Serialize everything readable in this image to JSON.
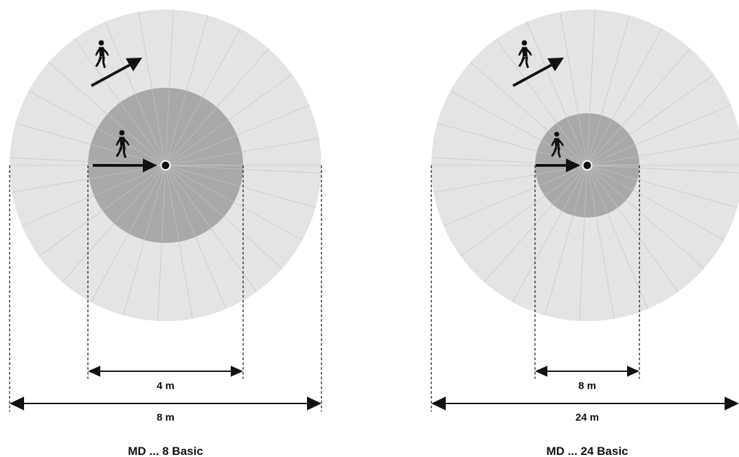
{
  "diagrams": [
    {
      "model": "MD ... 8 Basic",
      "inner_range": "4 m",
      "outer_range": "8 m",
      "colors": {
        "outer_zone": "#e4e4e4",
        "inner_zone": "#a8a8a8",
        "rays": "#cbcbcb"
      },
      "icons": [
        "walking-person-icon",
        "diagonal-approach-arrow-icon",
        "walking-person-icon",
        "direct-approach-arrow-icon",
        "sensor-dot-icon"
      ]
    },
    {
      "model": "MD ... 24 Basic",
      "inner_range": "8 m",
      "outer_range": "24 m",
      "colors": {
        "outer_zone": "#e4e4e4",
        "inner_zone": "#a8a8a8",
        "rays": "#cbcbcb"
      },
      "icons": [
        "walking-person-icon",
        "diagonal-approach-arrow-icon",
        "walking-person-icon",
        "direct-approach-arrow-icon",
        "sensor-dot-icon"
      ]
    }
  ]
}
